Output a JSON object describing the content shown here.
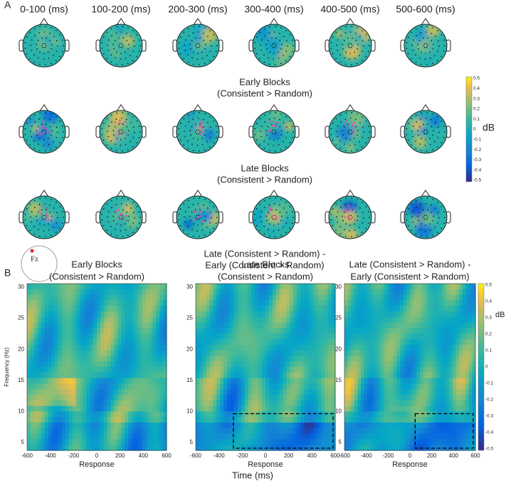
{
  "panel_a": {
    "label": "A",
    "time_windows": [
      "0-100  (ms)",
      "100-200  (ms)",
      "200-300  (ms)",
      "300-400  (ms)",
      "400-500  (ms)",
      "500-600  (ms)"
    ],
    "rows": [
      {
        "caption": [
          "Early Blocks",
          "(Consistent > Random)"
        ]
      },
      {
        "caption": [
          "Late Blocks",
          "(Consistent > Random)"
        ]
      },
      {
        "caption": [
          "Late (Consistent > Random) -",
          "Early (Consistent > Random)"
        ]
      }
    ],
    "colorbar_ticks": [
      "0.5",
      "0.4",
      "0.3",
      "0.2",
      "0.1",
      "0",
      "-0.1",
      "-0.2",
      "-0.3",
      "-0.4",
      "-0.5"
    ],
    "colorbar_unit": "dB",
    "electrode": "Fz"
  },
  "panel_b": {
    "label": "B",
    "plots": [
      {
        "title": [
          "Early Blocks",
          "(Consistent > Random)"
        ]
      },
      {
        "title": [
          "Late Blocks",
          "(Consistent > Random)"
        ]
      },
      {
        "title": [
          "Late (Consistent > Random) -",
          "Early (Consistent > Random)"
        ]
      }
    ],
    "x_ticks": [
      "-600",
      "-400",
      "-200",
      "0",
      "200",
      "400",
      "600"
    ],
    "x_label": "Response",
    "y_ticks": [
      "30",
      "25",
      "20",
      "15",
      "10",
      "5"
    ],
    "y_label": "Frequency (Hz)",
    "time_label": "Time (ms)",
    "colorbar_ticks": [
      "0.5",
      "0.4",
      "0.3",
      "0.2",
      "0.1",
      "0",
      "-0.1",
      "-0.2",
      "-0.3",
      "-0.4",
      "-0.5"
    ],
    "colorbar_unit": "dB"
  }
}
